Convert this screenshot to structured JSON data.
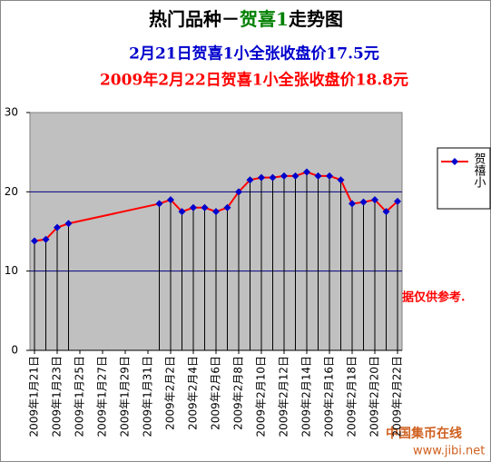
{
  "chart_data": {
    "type": "line",
    "title": "热门品种－",
    "title_highlight": "贺喜1",
    "title_end": "走势图",
    "subtitle": "2月21日贺喜1小全张收盘价17.5元",
    "subtitle2": "2009年2月22日贺喜1小全张收盘价18.8元",
    "annotation": "数据仅供参考.",
    "x": [
      "2009-01-21",
      "2009-01-22",
      "2009-01-23",
      "2009-01-24",
      "2009-02-01",
      "2009-02-02",
      "2009-02-03",
      "2009-02-04",
      "2009-02-05",
      "2009-02-06",
      "2009-02-07",
      "2009-02-08",
      "2009-02-09",
      "2009-02-10",
      "2009-02-11",
      "2009-02-12",
      "2009-02-13",
      "2009-02-14",
      "2009-02-15",
      "2009-02-16",
      "2009-02-17",
      "2009-02-18",
      "2009-02-19",
      "2009-02-20",
      "2009-02-21",
      "2009-02-22"
    ],
    "series": [
      {
        "name": "贺禧小",
        "color": "#ff0000",
        "marker_color": "#0000cc",
        "values": [
          13.8,
          14,
          15.5,
          16,
          18.5,
          19,
          17.5,
          18,
          18,
          17.5,
          18,
          20,
          21.5,
          21.8,
          21.8,
          22,
          22,
          22.5,
          22,
          22,
          21.5,
          18.5,
          18.7,
          19,
          17.5,
          18.8
        ]
      }
    ],
    "xlim": [
      "2009-01-21",
      "2009-02-22"
    ],
    "xticks": [
      {
        "value": "2009-01-21",
        "label": "2009年1月21日"
      },
      {
        "value": "2009-01-23",
        "label": "2009年1月23日"
      },
      {
        "value": "2009-01-25",
        "label": "2009年1月25日"
      },
      {
        "value": "2009-01-27",
        "label": "2009年1月27日"
      },
      {
        "value": "2009-01-29",
        "label": "2009年1月29日"
      },
      {
        "value": "2009-01-31",
        "label": "2009年1月31日"
      },
      {
        "value": "2009-02-02",
        "label": "2009年2月2日"
      },
      {
        "value": "2009-02-04",
        "label": "2009年2月4日"
      },
      {
        "value": "2009-02-06",
        "label": "2009年2月6日"
      },
      {
        "value": "2009-02-08",
        "label": "2009年2月8日"
      },
      {
        "value": "2009-02-10",
        "label": "2009年2月10日"
      },
      {
        "value": "2009-02-12",
        "label": "2009年2月12日"
      },
      {
        "value": "2009-02-14",
        "label": "2009年2月14日"
      },
      {
        "value": "2009-02-16",
        "label": "2009年2月16日"
      },
      {
        "value": "2009-02-18",
        "label": "2009年2月18日"
      },
      {
        "value": "2009-02-20",
        "label": "2009年2月20日"
      },
      {
        "value": "2009-02-22",
        "label": "2009年2月22日"
      }
    ],
    "ylim": [
      0,
      30
    ],
    "yticks": [
      0,
      10,
      20,
      30
    ],
    "grid": true,
    "drop_lines": true,
    "legend": "right"
  },
  "watermark": {
    "name": "中国集币在线",
    "url": "www.jibi.net"
  }
}
